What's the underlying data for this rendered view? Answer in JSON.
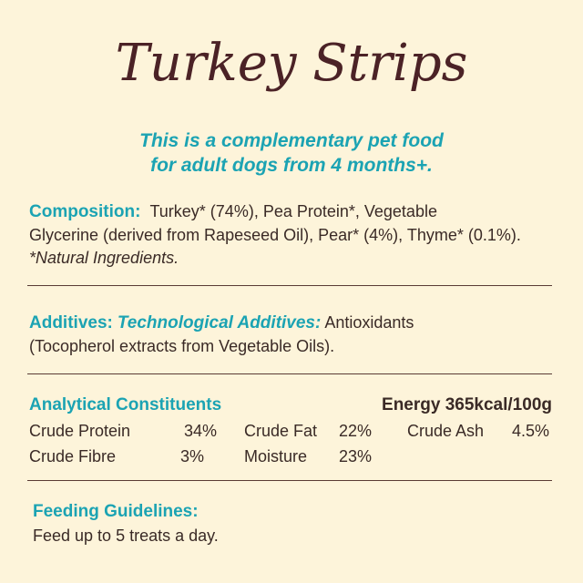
{
  "title": "Turkey Strips",
  "subtitle": [
    "This is a complementary pet food",
    "for adult dogs from 4 months+."
  ],
  "composition": {
    "label": "Composition:",
    "lines": [
      "Turkey* (74%), Pea Protein*, Vegetable",
      "Glycerine (derived from Rapeseed Oil), Pear* (4%), Thyme* (0.1%)."
    ],
    "note": "*Natural Ingredients."
  },
  "additives": {
    "label": "Additives:",
    "sublabel": "Technological Additives:",
    "lines": [
      "Antioxidants",
      "(Tocopherol extracts from Vegetable Oils)."
    ]
  },
  "analytical": {
    "label": "Analytical Constituents",
    "energy": "Energy 365kcal/100g",
    "rows": [
      [
        {
          "name": "Crude Protein",
          "value": "34%"
        },
        {
          "name": "Crude Fat",
          "value": "22%"
        },
        {
          "name": "Crude Ash",
          "value": "4.5%"
        }
      ],
      [
        {
          "name": "Crude Fibre",
          "value": "3%"
        },
        {
          "name": "Moisture",
          "value": "23%"
        }
      ]
    ]
  },
  "feeding": {
    "label": "Feeding Guidelines:",
    "text": "Feed up to 5 treats a day."
  }
}
